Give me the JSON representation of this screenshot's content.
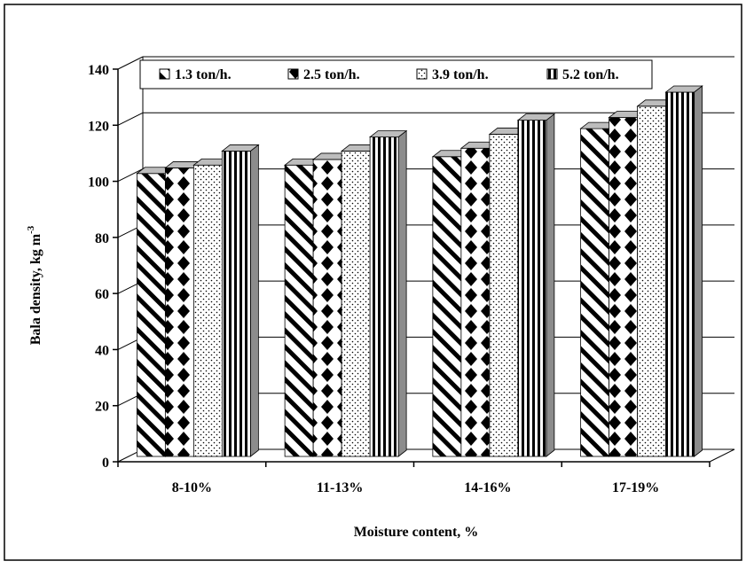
{
  "chart_data": {
    "type": "bar",
    "xlabel": "Moisture content, %",
    "ylabel": "Bala density, kg m",
    "ylabel_superscript": "-3",
    "categories": [
      "8-10%",
      "11-13%",
      "14-16%",
      "17-19%"
    ],
    "ylim": [
      0,
      140
    ],
    "yticks": [
      "0",
      "20",
      "40",
      "60",
      "80",
      "100",
      "120",
      "140"
    ],
    "grid": true,
    "legend_placement": "top",
    "style": "3d-bar-patterned",
    "series": [
      {
        "name": "1.3 ton/h.",
        "values": [
          105,
          108,
          111,
          121
        ],
        "pattern": "diagonal-stripes"
      },
      {
        "name": "2.5 ton/h.",
        "values": [
          107,
          110,
          114,
          125
        ],
        "pattern": "diamond-checker"
      },
      {
        "name": "3.9 ton/h.",
        "values": [
          108,
          113,
          119,
          129
        ],
        "pattern": "dots"
      },
      {
        "name": "5.2 ton/h.",
        "values": [
          113,
          118,
          124,
          134
        ],
        "pattern": "vertical-stripes"
      }
    ],
    "colors": {
      "bar_top": "#bdbdbd",
      "bar_side": "#8c8c8c",
      "ink": "#000000"
    }
  }
}
